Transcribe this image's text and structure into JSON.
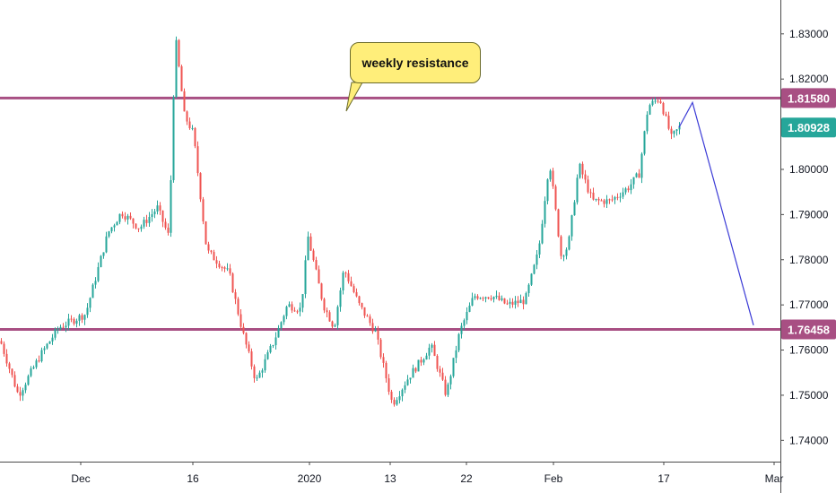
{
  "chart_data": {
    "type": "candlestick",
    "title": "",
    "xlabel": "",
    "ylabel": "",
    "ylim": [
      1.7353,
      1.8375
    ],
    "y_ticks": [
      "1.83000",
      "1.82000",
      "1.81000",
      "1.80000",
      "1.79000",
      "1.78000",
      "1.77000",
      "1.76000",
      "1.75000",
      "1.74000"
    ],
    "x_ticks": [
      "Dec",
      "16",
      "2020",
      "13",
      "22",
      "Feb",
      "17",
      "Mar"
    ],
    "price_labels": [
      {
        "value": "1.81580",
        "color": "#a84f83"
      },
      {
        "value": "1.80928",
        "color": "#26a69a"
      },
      {
        "value": "1.76458",
        "color": "#a84f83"
      }
    ],
    "horizontal_lines": [
      {
        "value": 1.8158,
        "color": "#a84f83",
        "label": "weekly resistance"
      },
      {
        "value": 1.76458,
        "color": "#a84f83"
      }
    ],
    "annotation": {
      "text": "weekly resistance"
    },
    "projection": {
      "color": "#3b3bd6",
      "points": [
        [
          1.8093,
          1.8093
        ],
        [
          1.8148,
          1.8148
        ],
        [
          1.7655,
          1.7655
        ]
      ]
    },
    "price_path": [
      [
        0,
        1.762
      ],
      [
        20,
        1.75
      ],
      [
        45,
        1.759
      ],
      [
        65,
        1.765
      ],
      [
        95,
        1.768
      ],
      [
        120,
        1.786
      ],
      [
        135,
        1.7905
      ],
      [
        155,
        1.787
      ],
      [
        175,
        1.7915
      ],
      [
        188,
        1.785
      ],
      [
        195,
        1.8295
      ],
      [
        205,
        1.812
      ],
      [
        215,
        1.808
      ],
      [
        230,
        1.782
      ],
      [
        255,
        1.777
      ],
      [
        270,
        1.764
      ],
      [
        285,
        1.753
      ],
      [
        305,
        1.762
      ],
      [
        320,
        1.77
      ],
      [
        335,
        1.769
      ],
      [
        343,
        1.785
      ],
      [
        360,
        1.77
      ],
      [
        372,
        1.765
      ],
      [
        383,
        1.778
      ],
      [
        400,
        1.77
      ],
      [
        418,
        1.764
      ],
      [
        437,
        1.748
      ],
      [
        455,
        1.754
      ],
      [
        470,
        1.758
      ],
      [
        480,
        1.761
      ],
      [
        497,
        1.75
      ],
      [
        512,
        1.764
      ],
      [
        528,
        1.772
      ],
      [
        548,
        1.772
      ],
      [
        565,
        1.77
      ],
      [
        585,
        1.771
      ],
      [
        600,
        1.782
      ],
      [
        612,
        1.802
      ],
      [
        625,
        1.781
      ],
      [
        633,
        1.783
      ],
      [
        645,
        1.801
      ],
      [
        660,
        1.793
      ],
      [
        680,
        1.793
      ],
      [
        700,
        1.796
      ],
      [
        712,
        1.799
      ],
      [
        722,
        1.814
      ],
      [
        735,
        1.8158
      ],
      [
        748,
        1.807
      ],
      [
        757,
        1.8093
      ]
    ],
    "colors": {
      "up": "#26a69a",
      "down": "#ef5350",
      "axis_text": "#131722",
      "grid": "#d1d4dc"
    }
  }
}
